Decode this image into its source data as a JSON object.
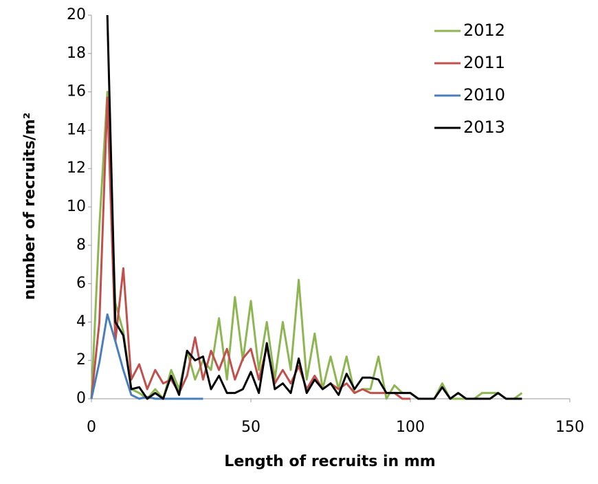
{
  "chart_data": {
    "type": "line",
    "xlabel": "Length of recruits in mm",
    "ylabel": "number of recruits/m²",
    "x": [
      0,
      2.5,
      5,
      7.5,
      10,
      12.5,
      15,
      17.5,
      20,
      22.5,
      25,
      27.5,
      30,
      32.5,
      35,
      37.5,
      40,
      42.5,
      45,
      47.5,
      50,
      52.5,
      55,
      57.5,
      60,
      62.5,
      65,
      67.5,
      70,
      72.5,
      75,
      77.5,
      80,
      82.5,
      85,
      87.5,
      90,
      92.5,
      95,
      97.5,
      100,
      102.5,
      105,
      107.5,
      110,
      112.5,
      115,
      117.5,
      120,
      122.5,
      125,
      127.5,
      130,
      132.5,
      135
    ],
    "series": [
      {
        "name": "2012",
        "color": "#8db653",
        "values": [
          0,
          9,
          16,
          5,
          3.5,
          0.5,
          0.3,
          0,
          0.5,
          0,
          1.5,
          0.5,
          2.5,
          1,
          2,
          1.5,
          4.2,
          1,
          5.3,
          2,
          5.1,
          1.5,
          4,
          1,
          4,
          1.5,
          6.2,
          1,
          3.4,
          0.5,
          2.2,
          0.5,
          2.2,
          0.3,
          0.5,
          0.5,
          2.2,
          0,
          0.7,
          0.3,
          0.3,
          0,
          0,
          0,
          0.8,
          0,
          0,
          0,
          0,
          0.3,
          0.3,
          0.3,
          0,
          0,
          0.3
        ]
      },
      {
        "name": "2011",
        "color": "#c0504d",
        "values": [
          0,
          4,
          15.7,
          3,
          6.8,
          1,
          1.8,
          0.5,
          1.5,
          0.8,
          1,
          0.3,
          1.2,
          3.2,
          1,
          2.5,
          1.5,
          2.6,
          1,
          2.1,
          2.6,
          1,
          2.7,
          0.8,
          1.5,
          0.8,
          1.7,
          0.5,
          1.2,
          0.5,
          0.8,
          0.5,
          0.8,
          0.3,
          0.5,
          0.3,
          0.3,
          0.3,
          0.3,
          0,
          0,
          null,
          null,
          null,
          null,
          null,
          null,
          null,
          null,
          null,
          null,
          null,
          null,
          null,
          null
        ]
      },
      {
        "name": "2010",
        "color": "#4a7ebb",
        "values": [
          0,
          1.9,
          4.4,
          3,
          1.5,
          0.2,
          0,
          0.1,
          0,
          0,
          0,
          0,
          0,
          0,
          0,
          null,
          null,
          null,
          null,
          null,
          null,
          null,
          null,
          null,
          null,
          null,
          null,
          null,
          null,
          null,
          null,
          null,
          null,
          null,
          null,
          null,
          null,
          null,
          null,
          null,
          null,
          null,
          null,
          null,
          null,
          null,
          null,
          null,
          null,
          null,
          null,
          null,
          null,
          null,
          null
        ]
      },
      {
        "name": "2013",
        "color": "#000000",
        "values": [
          null,
          null,
          20,
          4,
          3.3,
          0.5,
          0.6,
          0,
          0.3,
          0,
          1.2,
          0.2,
          2.5,
          2,
          2.2,
          0.5,
          1.2,
          0.3,
          0.3,
          0.5,
          1.4,
          0.3,
          2.9,
          0.5,
          0.8,
          0.3,
          2.1,
          0.3,
          1,
          0.5,
          0.8,
          0.2,
          1.3,
          0.5,
          1.1,
          1.1,
          1,
          0.3,
          0.3,
          0.3,
          0.3,
          0,
          0,
          0,
          0.6,
          0,
          0.3,
          0,
          0,
          0,
          0,
          0.3,
          0,
          0,
          0
        ]
      }
    ],
    "xlim": [
      0,
      150
    ],
    "xticks": [
      0,
      50,
      100,
      150
    ],
    "ylim": [
      0,
      20
    ],
    "yticks": [
      0,
      2,
      4,
      6,
      8,
      10,
      12,
      14,
      16,
      18,
      20
    ],
    "legend": "upper right"
  }
}
